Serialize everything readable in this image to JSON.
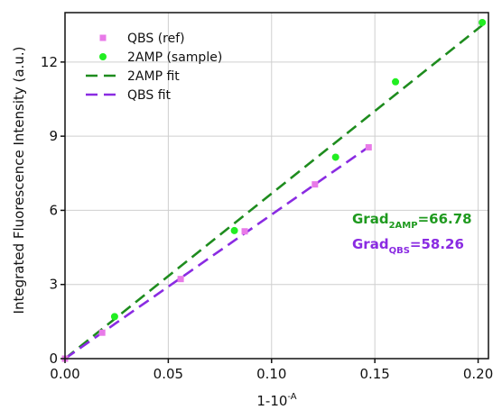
{
  "chart_data": {
    "type": "scatter",
    "xlabel": "1-10",
    "xlabel_sup": "-A",
    "ylabel": "Integrated Fluorescence Intensity (a.u.)",
    "xlim": [
      0,
      0.205
    ],
    "ylim": [
      0,
      14
    ],
    "xticks": [
      0.0,
      0.05,
      0.1,
      0.15,
      0.2
    ],
    "xtick_labels": [
      "0.00",
      "0.05",
      "0.10",
      "0.15",
      "0.20"
    ],
    "yticks": [
      0,
      3,
      6,
      9,
      12
    ],
    "ytick_labels": [
      "0",
      "3",
      "6",
      "9",
      "12"
    ],
    "grid": true,
    "legend_position": "top-left",
    "series": [
      {
        "name": "QBS (ref)",
        "kind": "points",
        "marker": "square",
        "color": "#e87ae8",
        "points": [
          [
            0.0,
            0.0
          ],
          [
            0.018,
            1.05
          ],
          [
            0.056,
            3.22
          ],
          [
            0.087,
            5.15
          ],
          [
            0.121,
            7.05
          ],
          [
            0.147,
            8.55
          ]
        ]
      },
      {
        "name": "2AMP (sample)",
        "kind": "points",
        "marker": "circle",
        "color": "#22ee22",
        "points": [
          [
            0.024,
            1.7
          ],
          [
            0.082,
            5.18
          ],
          [
            0.131,
            8.15
          ],
          [
            0.16,
            11.2
          ],
          [
            0.202,
            13.6
          ]
        ]
      },
      {
        "name": "2AMP fit",
        "kind": "line",
        "dash": true,
        "color": "#1e8c1e",
        "slope": 66.78,
        "x_range": [
          0.0,
          0.202
        ]
      },
      {
        "name": "QBS fit",
        "kind": "line",
        "dash": true,
        "color": "#8a2be2",
        "slope": 58.26,
        "x_range": [
          0.0,
          0.147
        ]
      }
    ],
    "annotations": [
      {
        "base": "Grad",
        "sub": "2AMP",
        "text": "=66.78",
        "color": "#1f9a1f"
      },
      {
        "base": "Grad",
        "sub": "QBS",
        "text": "=58.26",
        "color": "#8a2be2"
      }
    ]
  }
}
